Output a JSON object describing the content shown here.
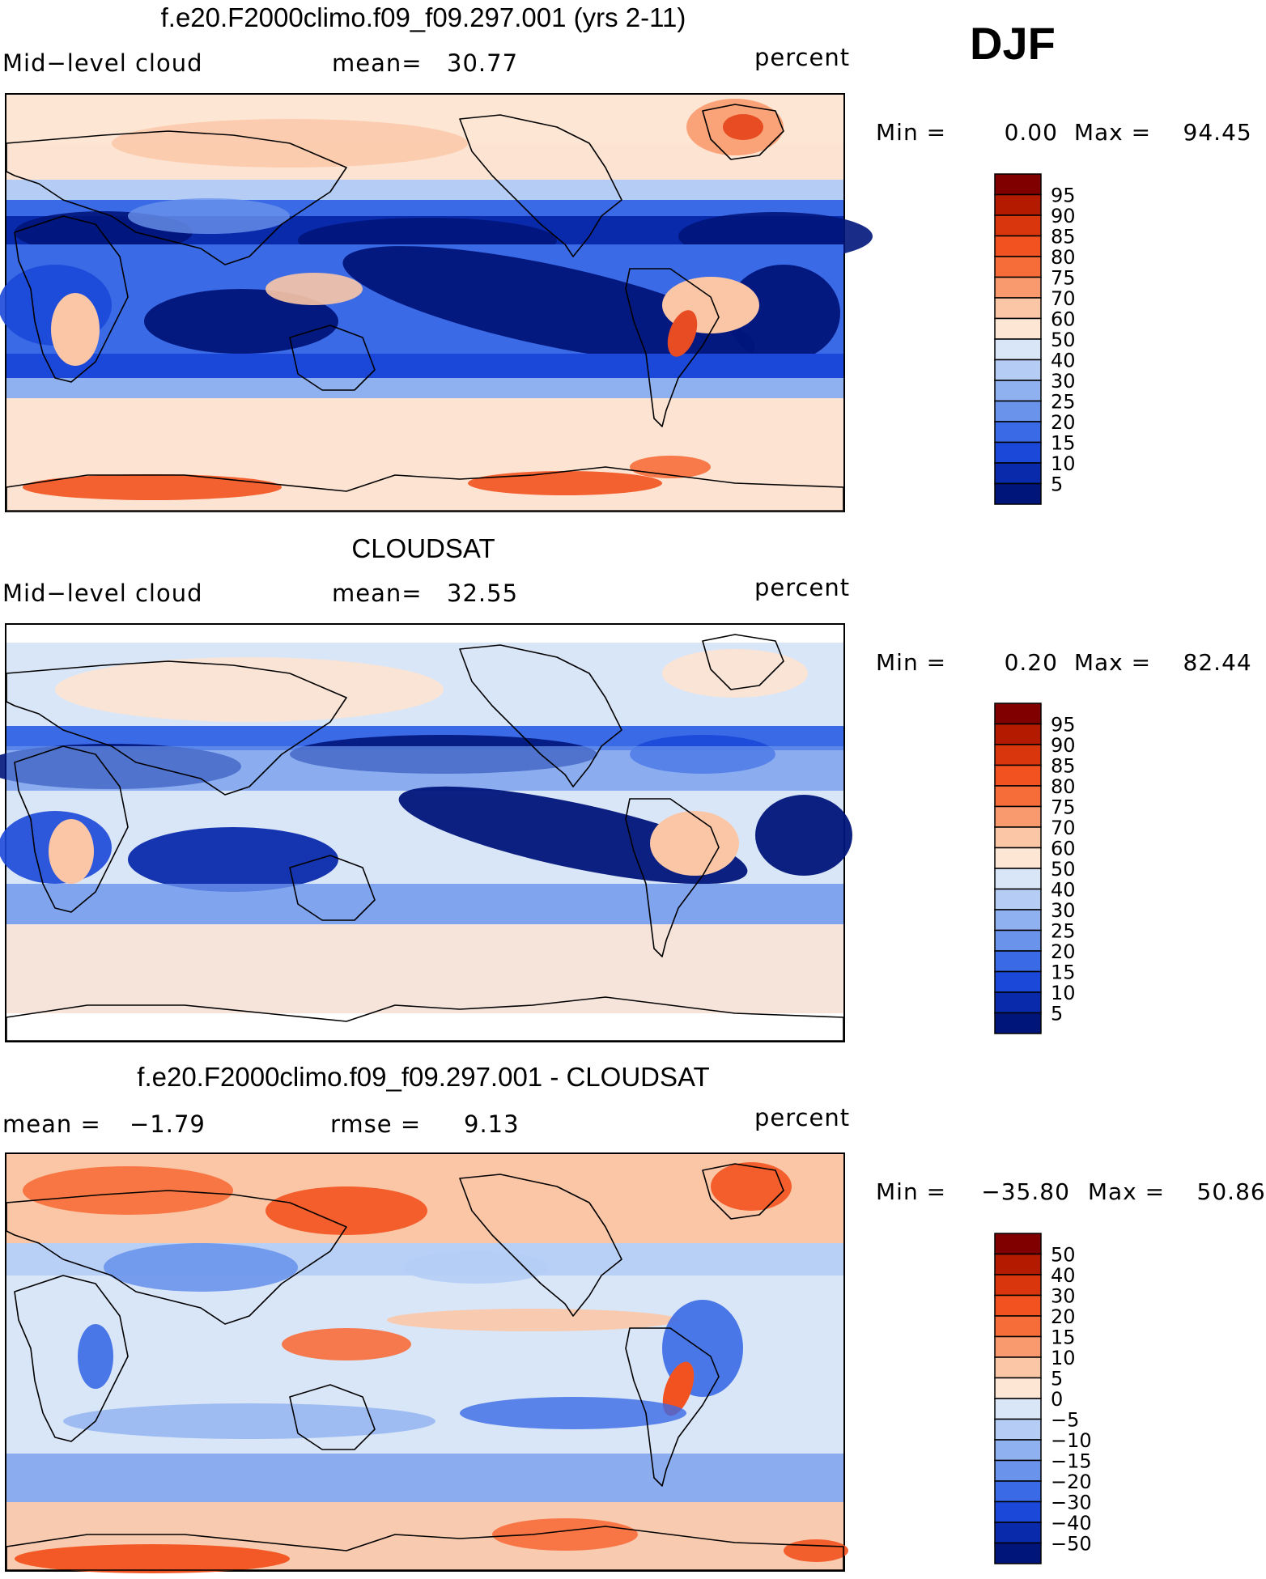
{
  "season": "DJF",
  "colors": {
    "frame": "#000000",
    "coast": "#000000",
    "deep_blue": "#00157a",
    "mid_blue": "#1a4fe0",
    "light_blue": "#a9c6f5",
    "pale_red": "#fde3d2",
    "orange": "#f4754a",
    "dark_red": "#820000"
  },
  "panels": [
    {
      "title": "f.e20.F2000climo.f09_f09.297.001 (yrs 2-11)",
      "left_label": "Mid−level cloud",
      "mid_label": "mean=",
      "mid_value": "30.77",
      "right_label": "percent",
      "stats": {
        "min_label": "Min =",
        "min": "0.00",
        "max_label": "Max =",
        "max": "94.45"
      },
      "legend": {
        "levels": [
          "95",
          "90",
          "85",
          "80",
          "75",
          "70",
          "60",
          "50",
          "40",
          "30",
          "25",
          "20",
          "15",
          "10",
          "5"
        ],
        "colors": [
          "#800000",
          "#b31a00",
          "#d9360d",
          "#f2521f",
          "#f76d3a",
          "#f99a6e",
          "#fbc6a6",
          "#fde6d4",
          "#d9e6f8",
          "#b5cdf5",
          "#8fb1f0",
          "#6a94ec",
          "#3a6ae6",
          "#1b48d8",
          "#0a2aac",
          "#00157a"
        ]
      }
    },
    {
      "title": "CLOUDSAT",
      "left_label": "Mid−level cloud",
      "mid_label": "mean=",
      "mid_value": "32.55",
      "right_label": "percent",
      "stats": {
        "min_label": "Min =",
        "min": "0.20",
        "max_label": "Max =",
        "max": "82.44"
      },
      "legend": {
        "levels": [
          "95",
          "90",
          "85",
          "80",
          "75",
          "70",
          "60",
          "50",
          "40",
          "30",
          "25",
          "20",
          "15",
          "10",
          "5"
        ],
        "colors": [
          "#800000",
          "#b31a00",
          "#d9360d",
          "#f2521f",
          "#f76d3a",
          "#f99a6e",
          "#fbc6a6",
          "#fde6d4",
          "#d9e6f8",
          "#b5cdf5",
          "#8fb1f0",
          "#6a94ec",
          "#3a6ae6",
          "#1b48d8",
          "#0a2aac",
          "#00157a"
        ]
      }
    },
    {
      "title": "f.e20.F2000climo.f09_f09.297.001 - CLOUDSAT",
      "left_label": "mean =",
      "left_value": "−1.79",
      "mid_label": "rmse =",
      "mid_value": "9.13",
      "right_label": "percent",
      "stats": {
        "min_label": "Min =",
        "min": "−35.80",
        "max_label": "Max =",
        "max": "50.86"
      },
      "legend": {
        "levels": [
          "50",
          "40",
          "30",
          "20",
          "15",
          "10",
          "5",
          "0",
          "−5",
          "−10",
          "−15",
          "−20",
          "−30",
          "−40",
          "−50"
        ],
        "colors": [
          "#800000",
          "#b31a00",
          "#d9360d",
          "#f2521f",
          "#f76d3a",
          "#f99a6e",
          "#fbc6a6",
          "#fde6d4",
          "#d9e6f8",
          "#b5cdf5",
          "#8fb1f0",
          "#6a94ec",
          "#3a6ae6",
          "#1b48d8",
          "#0a2aac",
          "#00157a"
        ]
      }
    }
  ]
}
